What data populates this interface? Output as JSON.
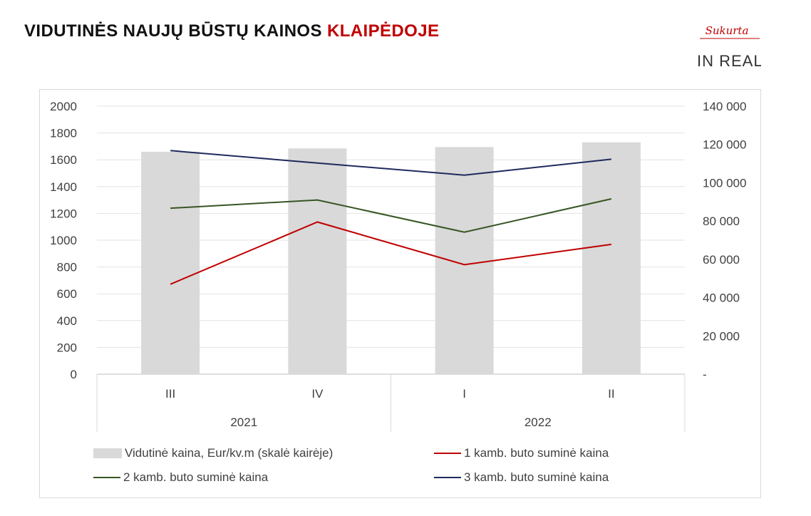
{
  "title": {
    "main": "VIDUTINĖS NAUJŲ BŪSTŲ KAINOS",
    "accent": "KLAIPĖDOJE"
  },
  "logo": {
    "script_text": "Sukurta",
    "brand_text": "IN REAL",
    "colors": {
      "script": "#c00000",
      "brand": "#333333"
    }
  },
  "chart_data": {
    "type": "bar",
    "categories": [
      "III",
      "IV",
      "I",
      "II"
    ],
    "category_groups": [
      {
        "label": "2021",
        "span": 2
      },
      {
        "label": "2022",
        "span": 2
      }
    ],
    "left_axis": {
      "ylim": [
        0,
        2000
      ],
      "ticks": [
        0,
        200,
        400,
        600,
        800,
        1000,
        1200,
        1400,
        1600,
        1800,
        2000
      ],
      "tick_labels": [
        "0",
        "200",
        "400",
        "600",
        "800",
        "1000",
        "1200",
        "1400",
        "1600",
        "1800",
        "2000"
      ]
    },
    "right_axis": {
      "ylim": [
        0,
        140000
      ],
      "ticks": [
        0,
        20000,
        40000,
        60000,
        80000,
        100000,
        120000,
        140000
      ],
      "tick_labels": [
        "-",
        "20 000",
        "40 000",
        "60 000",
        "80 000",
        "100 000",
        "120 000",
        "140 000"
      ]
    },
    "bar_series": {
      "name": "Vidutinė kaina, Eur/kv.m (skalė kairėje)",
      "axis": "left",
      "color": "#d9d9d9",
      "values": [
        1660,
        1685,
        1695,
        1730
      ]
    },
    "series": [
      {
        "name": "1 kamb. buto suminė kaina",
        "axis": "right",
        "color": "#c00000",
        "values": [
          47000,
          79500,
          57200,
          67800
        ]
      },
      {
        "name": "2 kamb. buto suminė kaina",
        "axis": "right",
        "color": "#375623",
        "values": [
          86700,
          91000,
          74200,
          91600
        ]
      },
      {
        "name": "3 kamb. buto suminė kaina",
        "axis": "right",
        "color": "#1f2a5c",
        "values": [
          116800,
          110300,
          104000,
          112300
        ]
      }
    ],
    "grid": true,
    "legend_position": "bottom"
  }
}
